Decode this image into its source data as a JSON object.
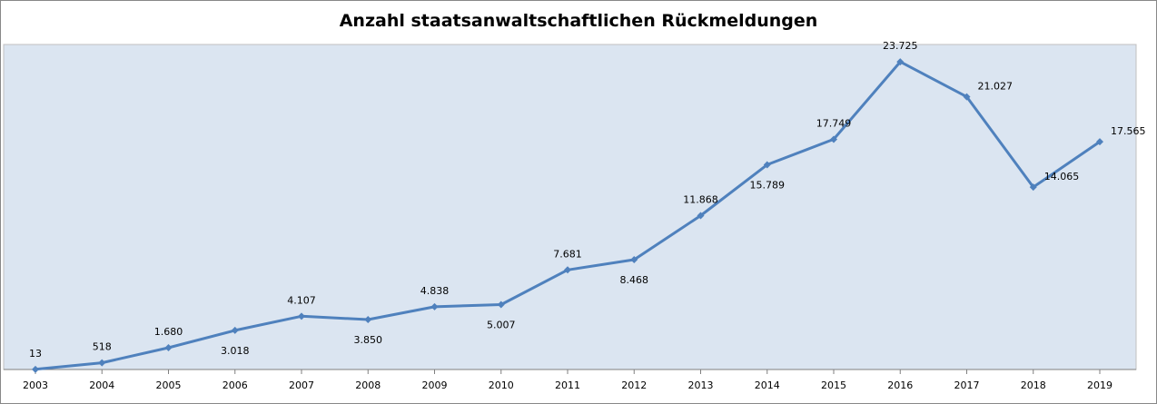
{
  "chart_data": {
    "type": "line",
    "title": "Anzahl staatsanwaltschaftlichen Rückmeldungen",
    "xlabel": "",
    "ylabel": "",
    "categories": [
      "2003",
      "2004",
      "2005",
      "2006",
      "2007",
      "2008",
      "2009",
      "2010",
      "2011",
      "2012",
      "2013",
      "2014",
      "2015",
      "2016",
      "2017",
      "2018",
      "2019"
    ],
    "values": [
      13,
      518,
      1680,
      3018,
      4107,
      3850,
      4838,
      5007,
      7681,
      8468,
      11868,
      15789,
      17749,
      23725,
      21027,
      14065,
      17565
    ],
    "value_labels": [
      "13",
      "518",
      "1.680",
      "3.018",
      "4.107",
      "3.850",
      "4.838",
      "5.007",
      "7.681",
      "8.468",
      "11.868",
      "15.789",
      "17.749",
      "23.725",
      "21.027",
      "14.065",
      "17.565"
    ],
    "label_positions": [
      "above",
      "above",
      "above",
      "below",
      "above",
      "below",
      "above",
      "below",
      "above",
      "below",
      "above",
      "below",
      "above",
      "above",
      "right",
      "right",
      "right"
    ],
    "ylim": [
      0,
      25000
    ],
    "grid": false,
    "legend": "none",
    "colors": {
      "line": "#4F81BD",
      "plot_background": "#DBE5F1",
      "axis": "#7F7F7F"
    }
  }
}
